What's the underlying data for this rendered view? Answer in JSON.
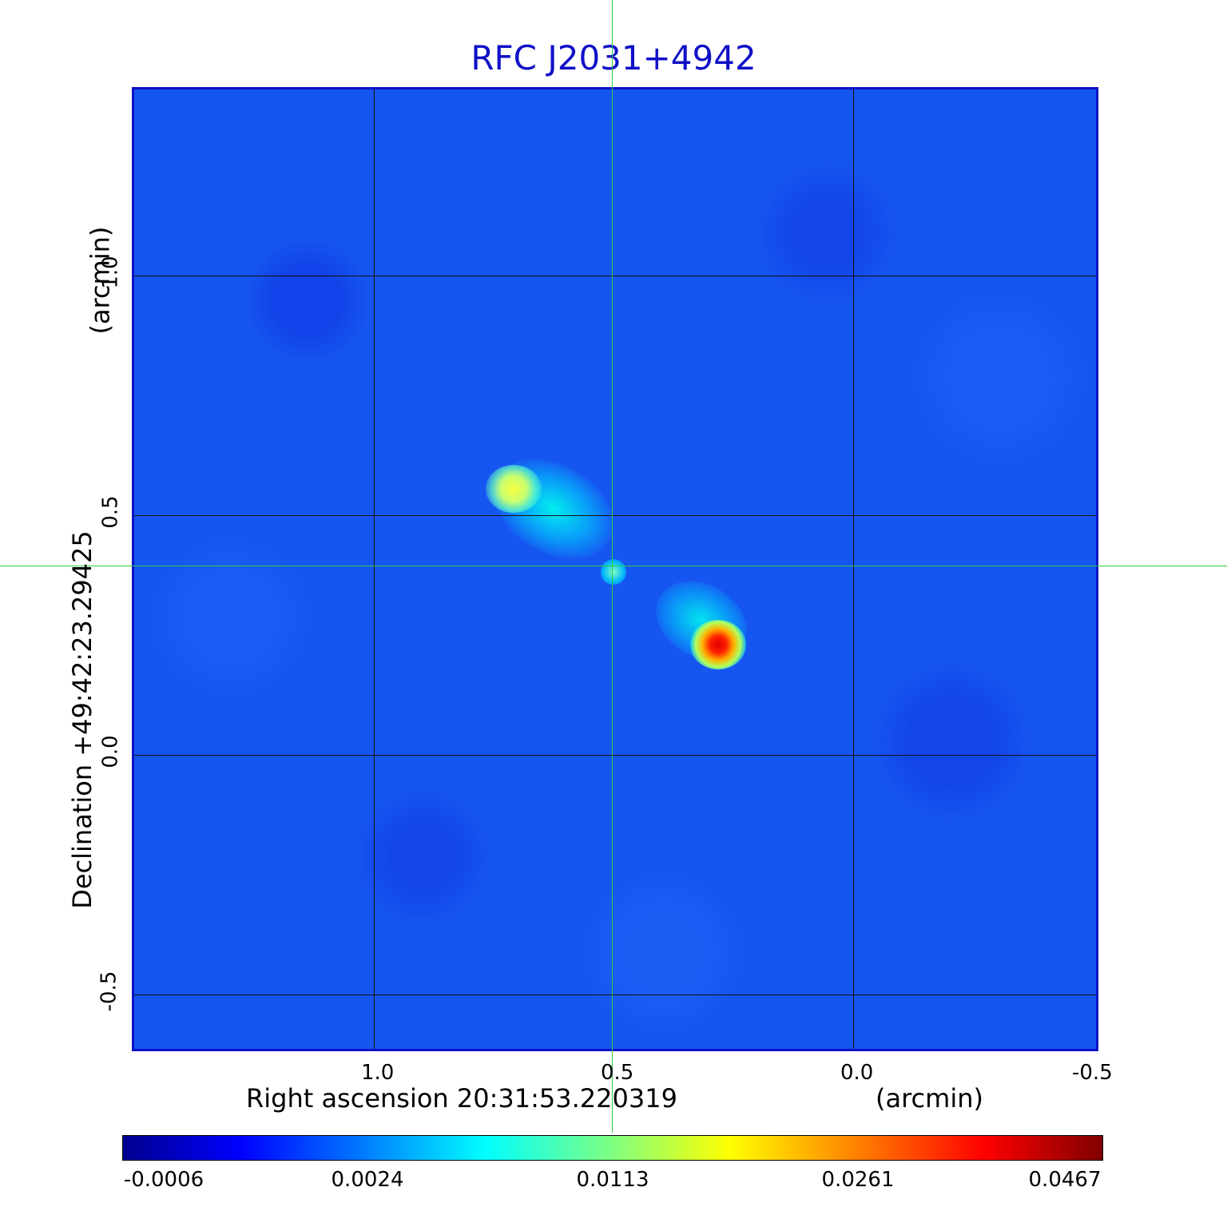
{
  "title": "RFC J2031+4942",
  "x_axis": {
    "label": "Right ascension  20:31:53.220319",
    "unit": "(arcmin)",
    "ticks": [
      "1.0",
      "0.5",
      "0.0",
      "-0.5"
    ]
  },
  "y_axis": {
    "label": "Declination  +49:42:23.29425",
    "unit": "(arcmin)",
    "ticks": [
      "1.0",
      "0.5",
      "0.0",
      "-0.5"
    ]
  },
  "colorbar": {
    "ticks": [
      "-0.0006",
      "0.0024",
      "0.0113",
      "0.0261",
      "0.0467"
    ]
  },
  "colors": {
    "title": "#1010c8",
    "crosshair": "#2ecc40",
    "frame": "#0a12c8"
  }
}
